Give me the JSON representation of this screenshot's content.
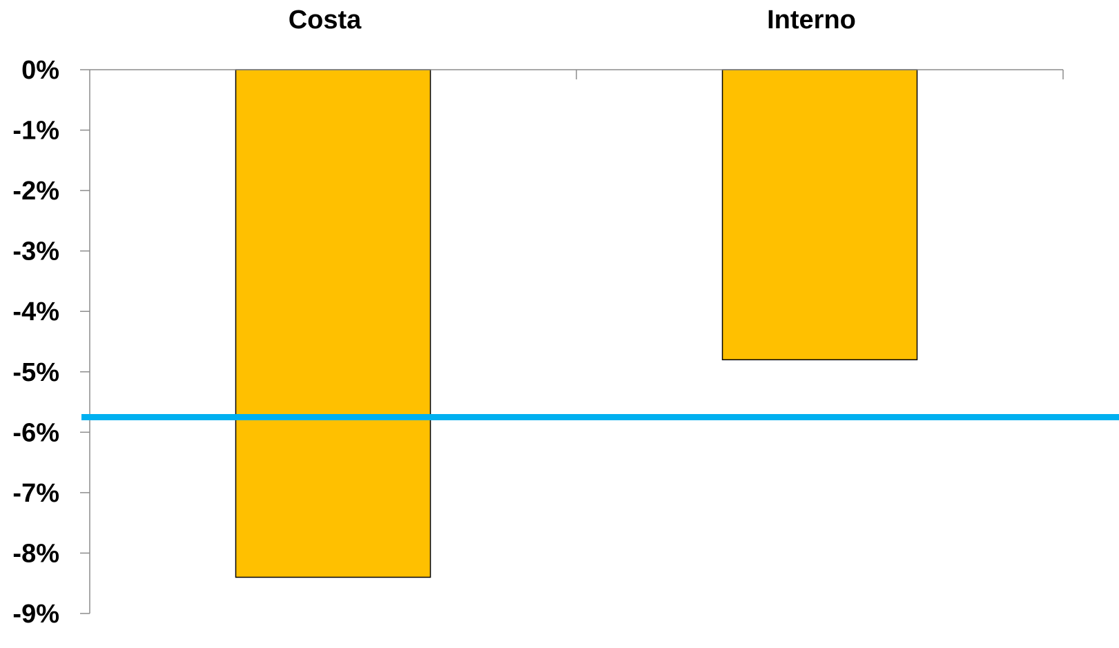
{
  "chart_data": {
    "type": "bar",
    "categories": [
      "Costa",
      "Interno"
    ],
    "values": [
      -8.4,
      -4.8
    ],
    "y_tick_labels": [
      "0%",
      "-1%",
      "-2%",
      "-3%",
      "-4%",
      "-5%",
      "-6%",
      "-7%",
      "-8%",
      "-9%"
    ],
    "y_ticks": [
      0,
      -1,
      -2,
      -3,
      -4,
      -5,
      -6,
      -7,
      -8,
      -9
    ],
    "ylim": [
      -9,
      0
    ],
    "reference_line": {
      "value": -5.75,
      "color": "#00B0F0"
    },
    "category_axis_position": "top",
    "grid": false,
    "title": "",
    "xlabel": "",
    "ylabel": "",
    "colors": {
      "bar_fill": "#FFC000",
      "bar_stroke": "#000000",
      "axis": "#8C8C8C",
      "reference_line": "#00B0F0"
    }
  }
}
